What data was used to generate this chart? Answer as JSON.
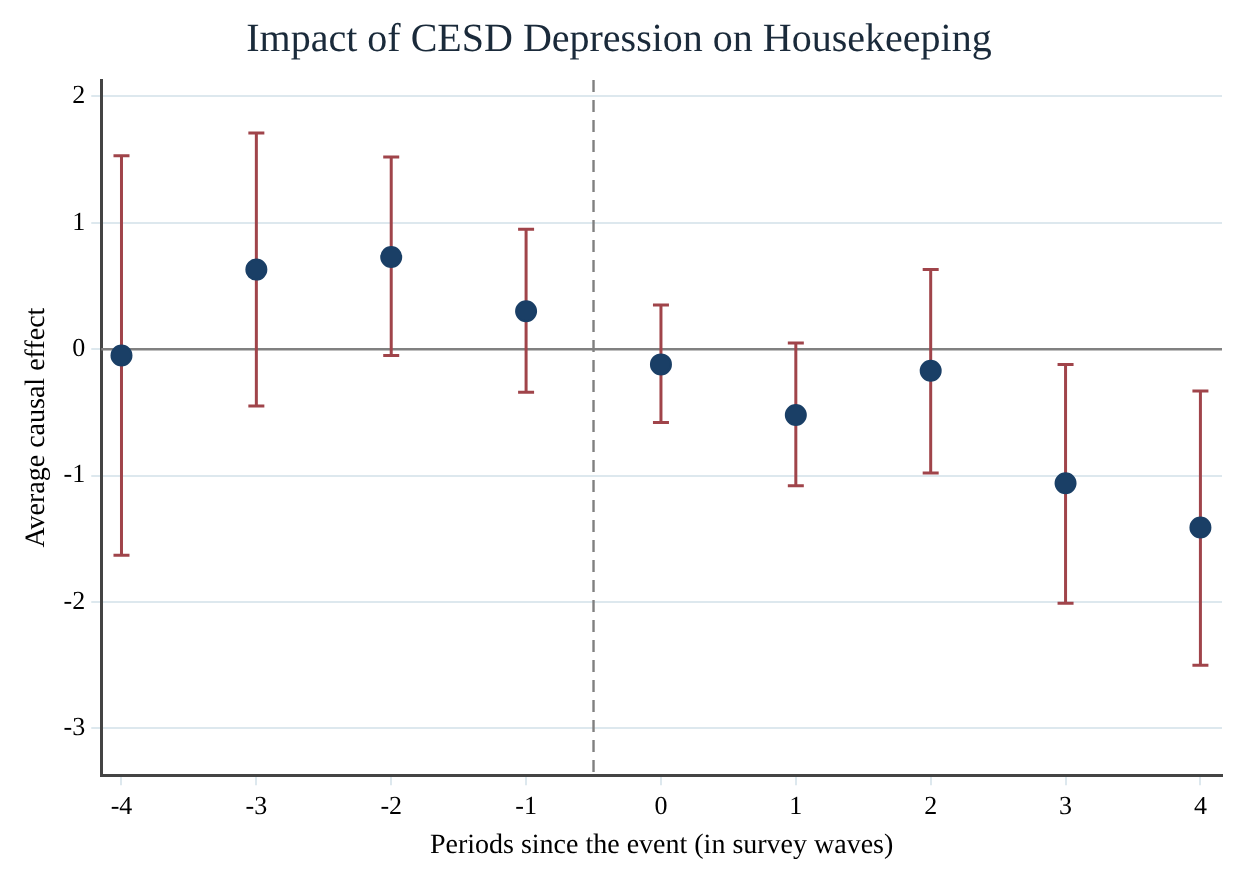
{
  "chart_data": {
    "type": "scatter",
    "title": "Impact of CESD Depression on Housekeeping",
    "xlabel": "Periods since the event (in survey waves)",
    "ylabel": "Average causal effect",
    "x": [
      -4,
      -3,
      -2,
      -1,
      0,
      1,
      2,
      3,
      4
    ],
    "series": [
      {
        "color": "#1a3f66",
        "values": [
          -0.05,
          0.63,
          0.73,
          0.3,
          -0.12,
          -0.52,
          -0.17,
          -1.06,
          -1.41
        ],
        "errors": [
          [
            -1.63,
            1.53
          ],
          [
            -0.45,
            1.71
          ],
          [
            -0.05,
            1.52
          ],
          [
            -0.34,
            0.95
          ],
          [
            -0.58,
            0.35
          ],
          [
            -1.08,
            0.05
          ],
          [
            -0.98,
            0.63
          ],
          [
            -2.01,
            -0.12
          ],
          [
            -2.5,
            -0.33
          ]
        ]
      }
    ],
    "xlim": [
      -4.15,
      4.16
    ],
    "xticks": [
      -4,
      -3,
      -2,
      -1,
      0,
      1,
      2,
      3,
      4
    ],
    "ylim": [
      -3.37,
      2.13
    ],
    "yticks": [
      -3,
      -2,
      -1,
      0,
      1,
      2
    ],
    "grid": "y",
    "marker": "circle",
    "legend": false,
    "ref_lines": [
      {
        "axis": "y",
        "value": 0,
        "color": "#808080",
        "line_style": "solid"
      },
      {
        "axis": "x",
        "value": -0.5,
        "color": "#808080",
        "line_style": "dashed"
      }
    ]
  }
}
